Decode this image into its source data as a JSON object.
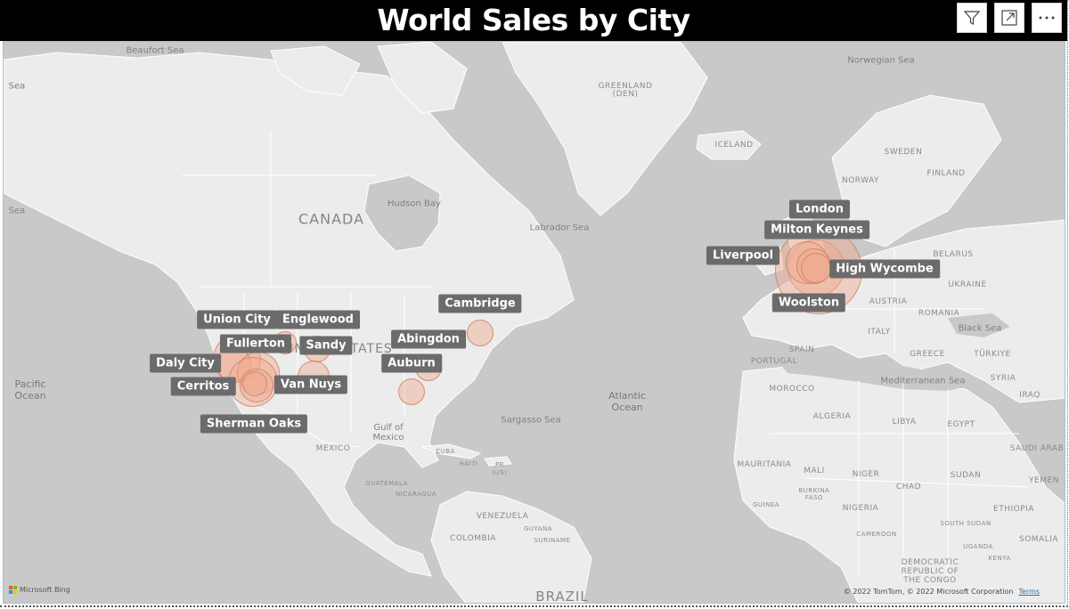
{
  "title": "World Sales by City",
  "header_buttons": [
    {
      "name": "filter-button",
      "icon": "filter-icon"
    },
    {
      "name": "focus-mode-button",
      "icon": "expand-icon"
    },
    {
      "name": "more-options-button",
      "icon": "more-icon"
    }
  ],
  "geo_labels": {
    "beaufort_sea": "Beaufort Sea",
    "norwegian_sea": "Norwegian Sea",
    "sea_left_top": "Sea",
    "sea_left_mid": "Sea",
    "greenland": "GREENLAND",
    "greenland_sub": "(DEN)",
    "iceland": "ICELAND",
    "sweden": "SWEDEN",
    "finland": "FINLAND",
    "norway": "NORWAY",
    "canada": "CANADA",
    "hudson_bay": "Hudson Bay",
    "labrador_sea": "Labrador Sea",
    "belarus": "BELARUS",
    "ukraine": "UKRAINE",
    "romania": "ROMANIA",
    "austria": "AUSTRIA",
    "black_sea": "Black Sea",
    "italy": "ITALY",
    "spain": "SPAIN",
    "portugal": "PORTUGAL",
    "greece": "GREECE",
    "turkiye": "TÜRKIYE",
    "syria": "SYRIA",
    "iraq": "IRAQ",
    "united_states": "UNITED STATES",
    "pacific_ocean": "Pacific Ocean",
    "atlantic_ocean": "Atlantic Ocean",
    "mediterranean_sea": "Mediterranean Sea",
    "morocco": "MOROCCO",
    "algeria": "ALGERIA",
    "libya": "LIBYA",
    "egypt": "EGYPT",
    "saudi_arabia": "SAUDI ARAB",
    "sargasso_sea": "Sargasso Sea",
    "gulf_of_mexico": "Gulf of Mexico",
    "mexico": "MEXICO",
    "cuba": "CUBA",
    "haiti": "HAITI",
    "pr": "PR",
    "pr_sub": "(US)",
    "guatemala": "GUATEMALA",
    "nicaragua": "NICARAGUA",
    "venezuela": "VENEZUELA",
    "guyana": "GUYANA",
    "suriname": "SURINAME",
    "colombia": "COLOMBIA",
    "brazil": "BRAZIL",
    "mauritania": "MAURITANIA",
    "mali": "MALI",
    "niger": "NIGER",
    "chad": "CHAD",
    "sudan": "SUDAN",
    "yemen": "YEMEN",
    "guinea": "GUINEA",
    "burkina_faso": "BURKINA FASO",
    "nigeria": "NIGERIA",
    "south_sudan": "SOUTH SUDAN",
    "ethiopia": "ETHIOPIA",
    "cameroon": "CAMEROON",
    "uganda": "UGANDA",
    "kenya": "KENYA",
    "somalia": "SOMALIA",
    "drc": "DEMOCRATIC REPUBLIC OF THE CONGO"
  },
  "cities": [
    {
      "name": "London",
      "sales": 55
    },
    {
      "name": "Milton Keynes",
      "sales": 35
    },
    {
      "name": "Liverpool",
      "sales": 45
    },
    {
      "name": "High Wycombe",
      "sales": 30
    },
    {
      "name": "Woolston",
      "sales": 60
    },
    {
      "name": "Cambridge",
      "sales": 18
    },
    {
      "name": "Abingdon",
      "sales": 14
    },
    {
      "name": "Auburn",
      "sales": 16
    },
    {
      "name": "Union City",
      "sales": 20
    },
    {
      "name": "Englewood",
      "sales": 16
    },
    {
      "name": "Fullerton",
      "sales": 22
    },
    {
      "name": "Sandy",
      "sales": 16
    },
    {
      "name": "Daly City",
      "sales": 26
    },
    {
      "name": "Cerritos",
      "sales": 24
    },
    {
      "name": "Van Nuys",
      "sales": 20
    },
    {
      "name": "Sherman Oaks",
      "sales": 28
    }
  ],
  "attribution": {
    "bing": "Microsoft Bing",
    "copyright": "© 2022 TomTom, © 2022 Microsoft Corporation",
    "terms": "Terms"
  },
  "colors": {
    "bubble_fill": "#f0aa91",
    "label_bg": "#6b6b6b",
    "land": "#ececec",
    "water": "#c9c9c9"
  }
}
